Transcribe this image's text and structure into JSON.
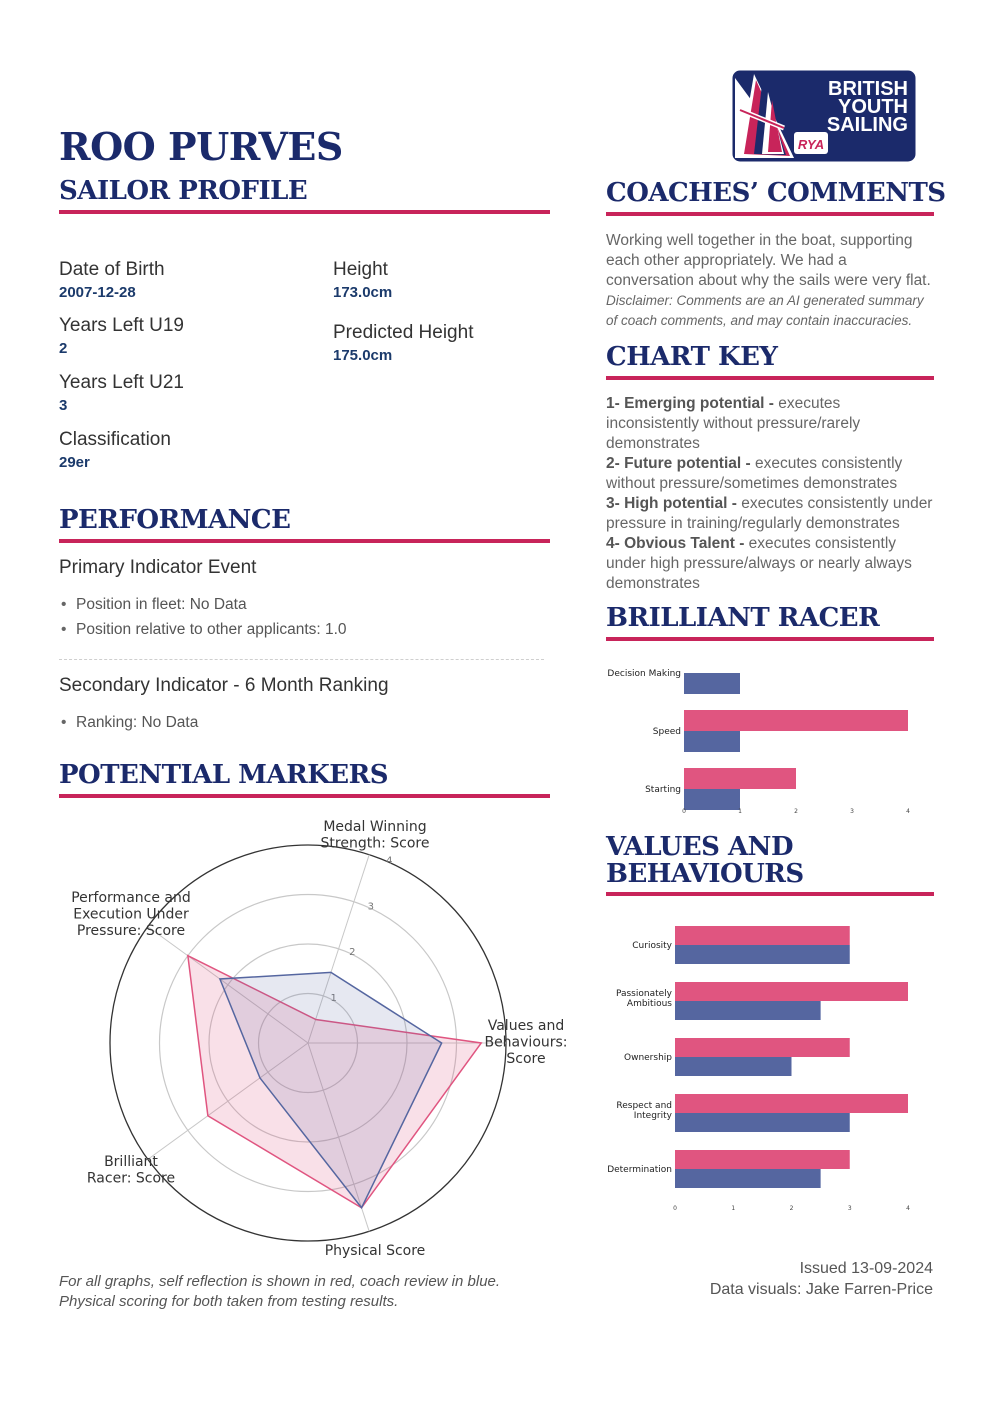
{
  "profile": {
    "name": "ROO PURVES",
    "heading": "SAILOR PROFILE",
    "fields": [
      {
        "label": "Date of Birth",
        "value": "2007-12-28"
      },
      {
        "label": "Years Left U19",
        "value": "2"
      },
      {
        "label": "Years Left U21",
        "value": "3"
      },
      {
        "label": "Classification",
        "value": "29er"
      },
      {
        "label": "Height",
        "value": "173.0cm"
      },
      {
        "label": "Predicted Height",
        "value": "175.0cm"
      }
    ]
  },
  "performance": {
    "heading": "PERFORMANCE",
    "primary_title": "Primary Indicator Event",
    "primary_items": [
      "Position in fleet: No Data",
      "Position relative to other applicants: 1.0"
    ],
    "secondary_title": "Secondary Indicator - 6 Month Ranking",
    "secondary_items": [
      "Ranking: No Data"
    ]
  },
  "potential": {
    "heading": "POTENTIAL MARKERS",
    "caption": "For all graphs, self reflection is shown in red, coach review in blue. Physical scoring for both taken from testing results."
  },
  "logo": {
    "line1": "BRITISH",
    "line2": "YOUTH",
    "line3": "SAILING",
    "badge": "RYA"
  },
  "coaches": {
    "heading": "COACHES’ COMMENTS",
    "text": "Working well together in the boat, supporting each other appropriately. We had a conversation about why the sails were very flat.",
    "disclaimer": "Disclaimer: Comments are an AI generated summary of coach comments, and may contain inaccuracies."
  },
  "chart_key": {
    "heading": "CHART KEY",
    "items": [
      {
        "term": "1- Emerging potential -",
        "desc": " executes inconsistently without pressure/rarely demonstrates"
      },
      {
        "term": "2- Future potential -",
        "desc": " executes consistently without pressure/sometimes demonstrates"
      },
      {
        "term": "3- High potential -",
        "desc": " executes consistently under pressure in training/regularly demonstrates"
      },
      {
        "term": "4- Obvious Talent -",
        "desc": " executes consistently under high pressure/always or nearly always demonstrates"
      }
    ]
  },
  "brilliant_racer": {
    "heading": "BRILLIANT RACER"
  },
  "values_behaviours": {
    "heading_line1": "VALUES AND",
    "heading_line2": "BEHAVIOURS"
  },
  "footer": {
    "issued": "Issued 13-09-2024",
    "credit": "Data visuals: Jake Farren-Price"
  },
  "colors": {
    "self": "#e05580",
    "coach": "#5566a0",
    "navy": "#1b2a6b",
    "accent": "#c8245a"
  },
  "chart_data": [
    {
      "type": "radar",
      "categories": [
        "Medal Winning\nStrength: Score",
        "Values and\nBehaviours:\nScore",
        "Physical Score",
        "Brilliant\nRacer: Score",
        "Performance and\nExecution Under\nPressure: Score"
      ],
      "tick_labels": [
        "1",
        "2",
        "3",
        "4"
      ],
      "rmax": 4,
      "series": [
        {
          "values": [
            0.5,
            3.5,
            3.5,
            2.5,
            3.0
          ]
        },
        {
          "values": [
            1.5,
            2.7,
            3.5,
            1.2,
            2.2
          ]
        }
      ]
    },
    {
      "type": "bar",
      "orientation": "horizontal",
      "categories": [
        "Decision Making",
        "Speed",
        "Starting"
      ],
      "series": [
        {
          "values": [
            0,
            4,
            2
          ]
        },
        {
          "values": [
            1,
            1,
            1
          ]
        }
      ],
      "xticks": [
        "0",
        "1",
        "2",
        "3",
        "4"
      ],
      "xlim": [
        0,
        4
      ]
    },
    {
      "type": "bar",
      "orientation": "horizontal",
      "categories": [
        "Curiosity",
        "Passionately\nAmbitious",
        "Ownership",
        "Respect and\nIntegrity",
        "Determination"
      ],
      "series": [
        {
          "values": [
            3,
            4,
            3,
            4,
            3
          ]
        },
        {
          "values": [
            3,
            2.5,
            2,
            3,
            2.5
          ]
        }
      ],
      "xticks": [
        "0",
        "1",
        "2",
        "3",
        "4"
      ],
      "xlim": [
        0,
        4
      ]
    }
  ]
}
